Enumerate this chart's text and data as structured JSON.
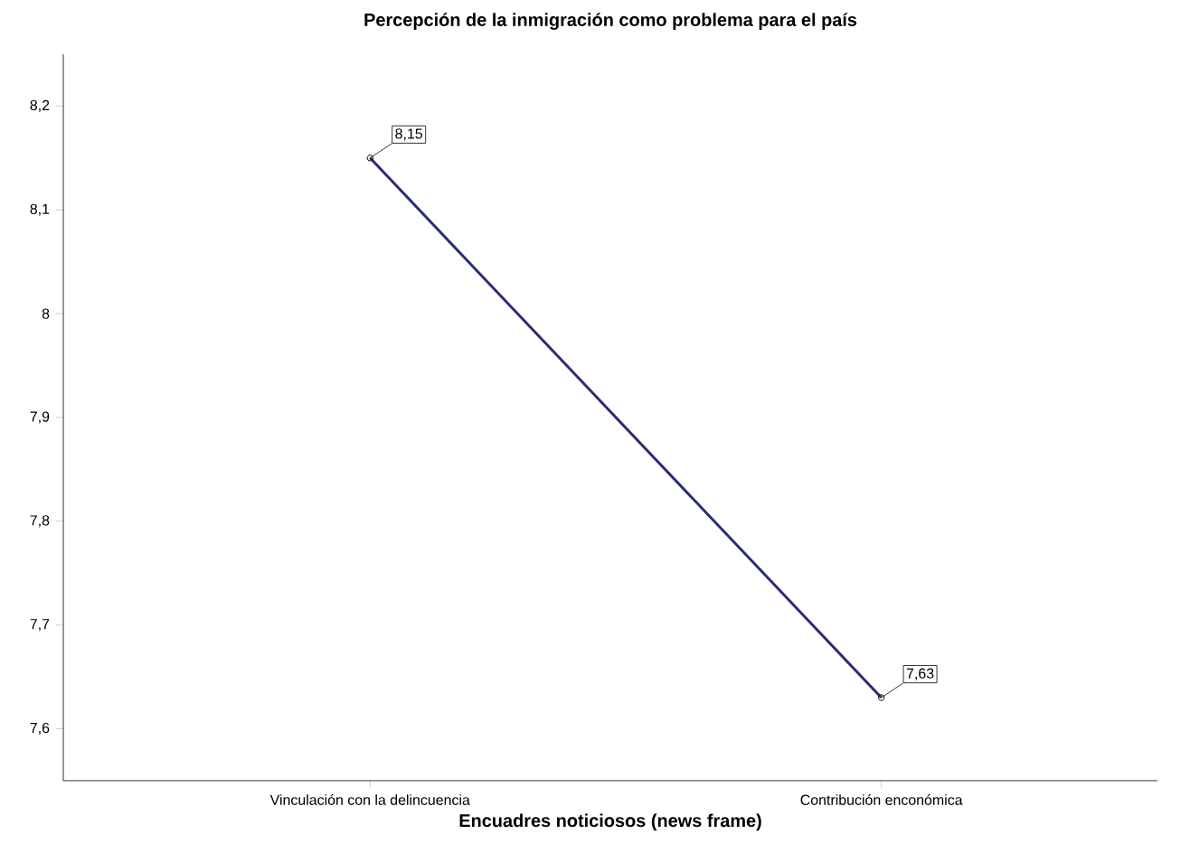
{
  "chart_data": {
    "type": "line",
    "title": "Percepción de la inmigración como problema para el país",
    "xlabel": "Encuadres noticiosos (news frame)",
    "categories": [
      "Vinculación con la delincuencia",
      "Contribución enconómica"
    ],
    "series": [
      {
        "color": "#2b2b7a",
        "values": [
          8.15,
          7.63
        ],
        "value_labels": [
          "8,15",
          "7,63"
        ]
      }
    ],
    "ylim": [
      7.55,
      8.25
    ],
    "yticks": [
      {
        "value": 7.6,
        "label": "7,6"
      },
      {
        "value": 7.7,
        "label": "7,7"
      },
      {
        "value": 7.8,
        "label": "7,8"
      },
      {
        "value": 7.9,
        "label": "7,9"
      },
      8,
      {
        "value": 8.1,
        "label": "8,1"
      },
      {
        "value": 8.2,
        "label": "8,2"
      }
    ],
    "marker": "circle",
    "line_style": "solid"
  }
}
